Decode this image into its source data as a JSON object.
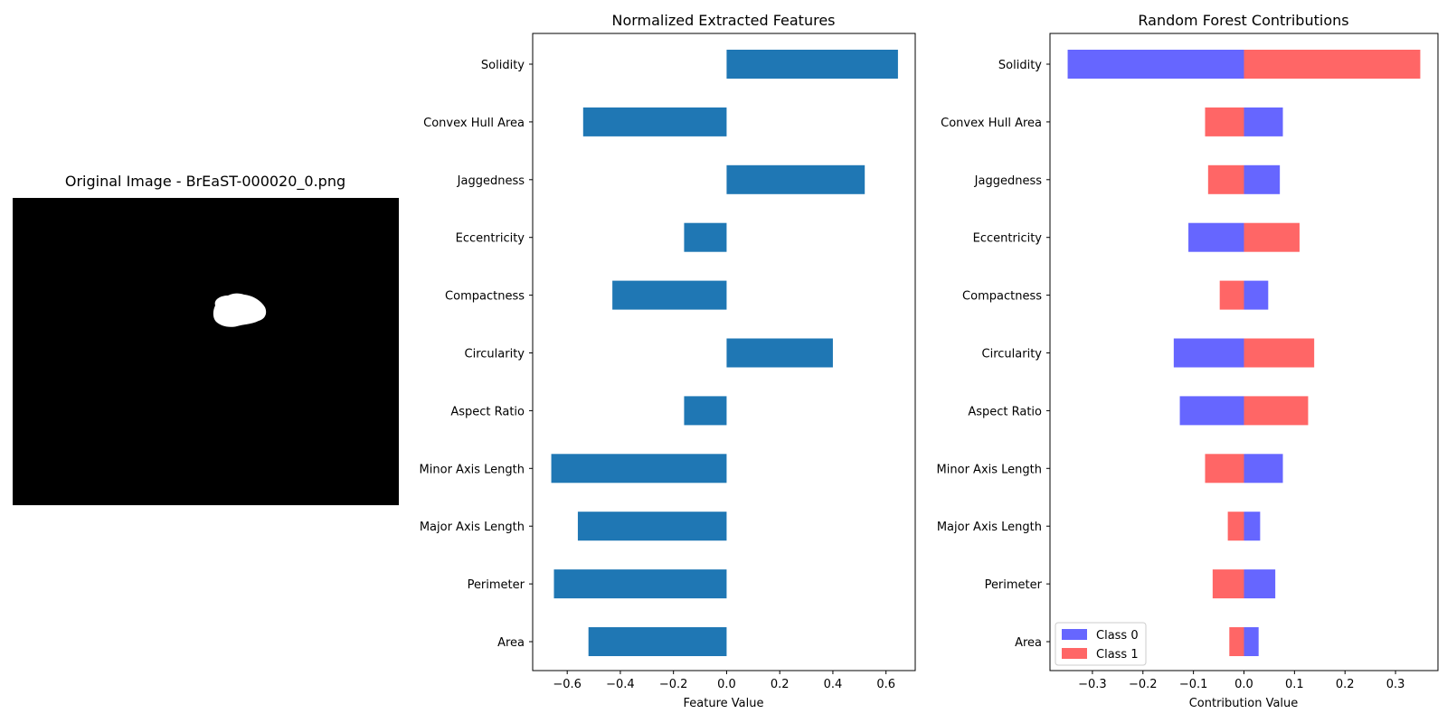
{
  "chart_data": [
    {
      "type": "image",
      "title": "Original Image - BrEaST-000020_0.png"
    },
    {
      "type": "bar",
      "orientation": "horizontal",
      "title": "Normalized Extracted Features",
      "xlabel": "Feature Value",
      "ylabel": "",
      "categories": [
        "Area",
        "Perimeter",
        "Major Axis Length",
        "Minor Axis Length",
        "Aspect Ratio",
        "Circularity",
        "Compactness",
        "Eccentricity",
        "Jaggedness",
        "Convex Hull Area",
        "Solidity"
      ],
      "values": [
        -0.52,
        -0.65,
        -0.56,
        -0.66,
        -0.16,
        0.4,
        -0.43,
        -0.16,
        0.52,
        -0.54,
        0.645
      ],
      "xlim": [
        -0.73,
        0.71
      ],
      "xticks": [
        -0.6,
        -0.4,
        -0.2,
        0.0,
        0.2,
        0.4,
        0.6
      ],
      "xtick_labels": [
        "−0.6",
        "−0.4",
        "−0.2",
        "0.0",
        "0.2",
        "0.4",
        "0.6"
      ],
      "color": "#1f77b4",
      "grid": false
    },
    {
      "type": "bar",
      "orientation": "horizontal",
      "stacked": "diverging",
      "title": "Random Forest Contributions",
      "xlabel": "Contribution Value",
      "ylabel": "",
      "categories": [
        "Area",
        "Perimeter",
        "Major Axis Length",
        "Minor Axis Length",
        "Aspect Ratio",
        "Circularity",
        "Compactness",
        "Eccentricity",
        "Jaggedness",
        "Convex Hull Area",
        "Solidity"
      ],
      "series": [
        {
          "name": "Class 0",
          "color": "#6666ff",
          "values": [
            0.029,
            0.062,
            0.032,
            0.077,
            -0.127,
            -0.139,
            0.048,
            -0.11,
            0.071,
            0.077,
            -0.349
          ]
        },
        {
          "name": "Class 1",
          "color": "#ff6666",
          "values": [
            -0.029,
            -0.062,
            -0.032,
            -0.077,
            0.127,
            0.139,
            -0.048,
            0.11,
            -0.071,
            -0.077,
            0.349
          ]
        }
      ],
      "xlim": [
        -0.384,
        0.384
      ],
      "xticks": [
        -0.3,
        -0.2,
        -0.1,
        0.0,
        0.1,
        0.2,
        0.3
      ],
      "xtick_labels": [
        "−0.3",
        "−0.2",
        "−0.1",
        "0.0",
        "0.1",
        "0.2",
        "0.3"
      ],
      "legend": "lower-left",
      "grid": false
    }
  ]
}
